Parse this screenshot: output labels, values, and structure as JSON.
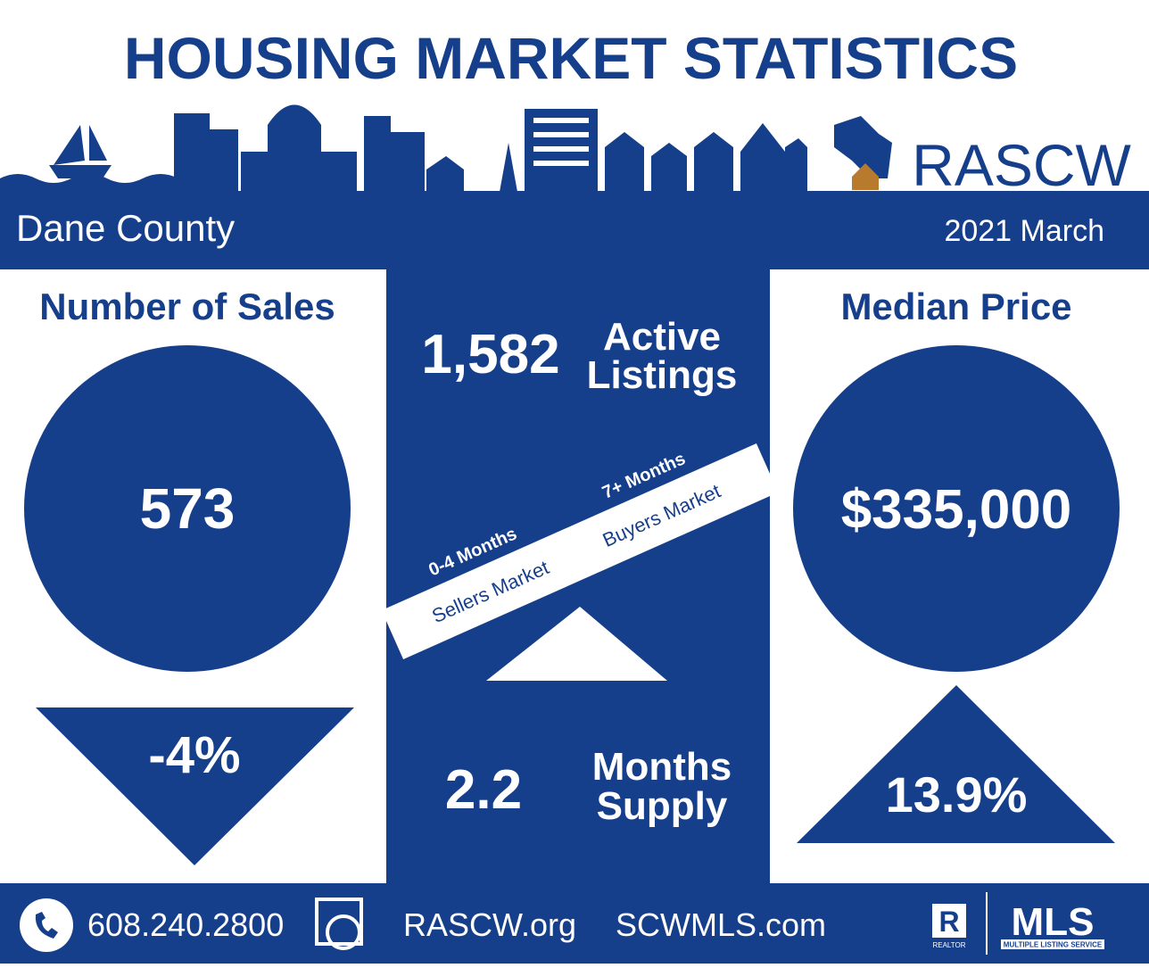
{
  "header": {
    "title": "HOUSING MARKET STATISTICS",
    "logo": "RASCW"
  },
  "banner": {
    "region": "Dane County",
    "period": "2021 March"
  },
  "sales": {
    "title": "Number of Sales",
    "value": "573",
    "change": "-4%"
  },
  "listings": {
    "value": "1,582",
    "label_line1": "Active",
    "label_line2": "Listings"
  },
  "scale": {
    "sellers_range": "0-4 Months",
    "sellers_label": "Sellers Market",
    "buyers_range": "7+ Months",
    "buyers_label": "Buyers Market"
  },
  "supply": {
    "value": "2.2",
    "label_line1": "Months",
    "label_line2": "Supply"
  },
  "price": {
    "title": "Median Price",
    "value": "$335,000",
    "change": "13.9%"
  },
  "footer": {
    "phone": "608.240.2800",
    "site1": "RASCW.org",
    "site2": "SCWMLS.com",
    "mls_logo": "MLS",
    "mls_caption": "MULTIPLE LISTING SERVICE",
    "realtor_mark": "R",
    "realtor_caption": "REALTOR"
  }
}
